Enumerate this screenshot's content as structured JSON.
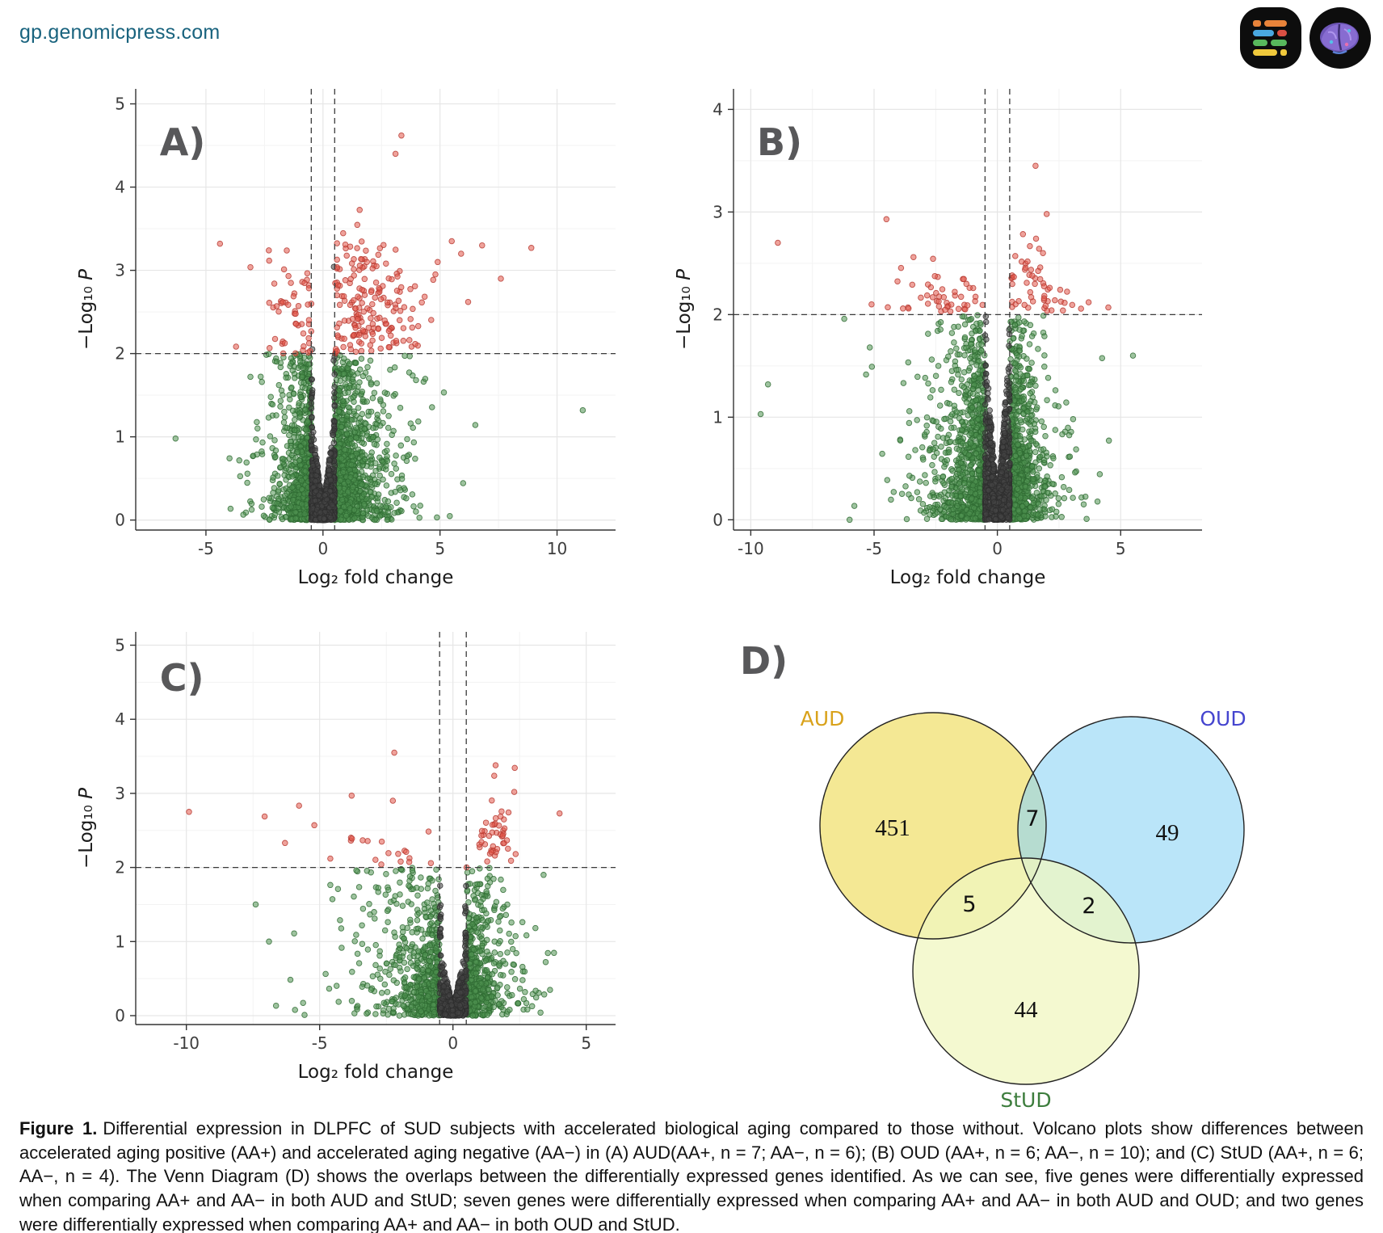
{
  "header": {
    "site": "gp.genomicpress.com",
    "logos": [
      {
        "name": "genomicpress-logo",
        "bg": "#0d0d0d"
      },
      {
        "name": "brain-logo",
        "bg": "#0d0d0d"
      }
    ]
  },
  "figure": {
    "label": "Figure 1.",
    "caption": "Differential expression in DLPFC of SUD subjects with accelerated biological aging compared to those without. Volcano plots show differences between accelerated aging positive (AA+) and accelerated aging negative (AA−) in (A) AUD(AA+, n = 7; AA−, n = 6); (B) OUD (AA+, n = 6; AA−, n = 10); and (C) StUD (AA+, n = 6; AA−, n = 4). The Venn Diagram (D) shows the overlaps between the differentially expressed genes identified. As we can see, five genes were differentially expressed when comparing AA+ and AA− in both AUD and StUD; seven genes were differentially expressed when comparing AA+ and AA− in both AUD and OUD; and two genes were differentially expressed when comparing AA+ and AA− in both OUD and StUD."
  },
  "chart_data": [
    {
      "type": "scatter",
      "panel": "A)",
      "subtype": "volcano",
      "xlabel": "Log₂ fold change",
      "ylabel": "−Log₁₀ P",
      "xlim": [
        -8.0,
        12.5
      ],
      "ylim": [
        -0.12,
        5.18
      ],
      "xticks": [
        -5,
        0,
        5,
        10
      ],
      "yticks": [
        0,
        1,
        2,
        3,
        4,
        5
      ],
      "hline": 2,
      "vlines": [
        -0.5,
        0.5
      ],
      "point_colors": {
        "ns": "#464646",
        "fc": "#4e9150",
        "sig": "#e25549"
      },
      "sim": {
        "seed": 11,
        "n": 2200,
        "pRight": 0.56,
        "scaleL": 0.8,
        "scaleR": 1.15,
        "xmaxL": 4.6,
        "xmaxR": 7.6,
        "yBase": 0.5,
        "ySlope": 0.22,
        "redKeep": 0.3,
        "centerN": 750,
        "cK0": 0.12,
        "cK": 2.3,
        "redClusters": [
          {
            "n": 120,
            "cx": 2.3,
            "cy": 2.5,
            "sx": 1.0,
            "sy": 0.33
          },
          {
            "n": 40,
            "cx": 1.3,
            "cy": 3.0,
            "sx": 0.7,
            "sy": 0.3
          },
          {
            "n": 28,
            "cx": -1.7,
            "cy": 2.5,
            "sx": 0.55,
            "sy": 0.3
          }
        ]
      },
      "outliers": [
        [
          11.1,
          1.32,
          "fc"
        ],
        [
          8.9,
          3.27,
          "sig"
        ],
        [
          3.35,
          4.62,
          "sig"
        ],
        [
          3.1,
          4.4,
          "sig"
        ],
        [
          6.8,
          3.3,
          "sig"
        ],
        [
          5.5,
          3.35,
          "sig"
        ],
        [
          4.9,
          3.1,
          "sig"
        ],
        [
          -4.4,
          3.32,
          "sig"
        ],
        [
          -6.3,
          0.98,
          "fc"
        ],
        [
          7.6,
          2.9,
          "sig"
        ],
        [
          6.2,
          2.62,
          "sig"
        ],
        [
          5.9,
          3.2,
          "sig"
        ]
      ]
    },
    {
      "type": "scatter",
      "panel": "B)",
      "subtype": "volcano",
      "xlabel": "Log₂ fold change",
      "ylabel": "−Log₁₀ P",
      "xlim": [
        -10.7,
        8.3
      ],
      "ylim": [
        -0.1,
        4.2
      ],
      "xticks": [
        -10,
        -5,
        0,
        5
      ],
      "yticks": [
        0,
        1,
        2,
        3,
        4
      ],
      "hline": 2,
      "vlines": [
        -0.5,
        0.5
      ],
      "point_colors": {
        "ns": "#464646",
        "fc": "#4e9150",
        "sig": "#e25549"
      },
      "sim": {
        "seed": 22,
        "n": 2200,
        "pRight": 0.47,
        "scaleL": 1.05,
        "scaleR": 0.8,
        "xmaxL": 7.0,
        "xmaxR": 4.8,
        "yBase": 0.42,
        "ySlope": 0.18,
        "redKeep": 0.12,
        "centerN": 800,
        "cK0": 0.12,
        "cK": 3.3,
        "redClusters": [
          {
            "n": 45,
            "cx": -2.1,
            "cy": 2.18,
            "sx": 0.9,
            "sy": 0.12
          },
          {
            "n": 38,
            "cx": 1.15,
            "cy": 2.3,
            "sx": 0.45,
            "sy": 0.22
          },
          {
            "n": 12,
            "cx": 2.8,
            "cy": 2.12,
            "sx": 0.6,
            "sy": 0.1
          }
        ]
      },
      "outliers": [
        [
          -8.9,
          2.7,
          "sig"
        ],
        [
          1.55,
          3.45,
          "sig"
        ],
        [
          -4.5,
          2.93,
          "sig"
        ],
        [
          2.0,
          2.98,
          "sig"
        ],
        [
          1.85,
          2.6,
          "sig"
        ],
        [
          -3.4,
          2.56,
          "sig"
        ],
        [
          -9.6,
          1.03,
          "fc"
        ],
        [
          -9.3,
          1.32,
          "fc"
        ],
        [
          5.5,
          1.6,
          "fc"
        ],
        [
          4.5,
          2.07,
          "sig"
        ],
        [
          3.7,
          2.12,
          "sig"
        ],
        [
          -5.1,
          2.1,
          "sig"
        ]
      ]
    },
    {
      "type": "scatter",
      "panel": "C)",
      "subtype": "volcano",
      "xlabel": "Log₂ fold change",
      "ylabel": "−Log₁₀ P",
      "xlim": [
        -11.9,
        6.1
      ],
      "ylim": [
        -0.12,
        5.18
      ],
      "xticks": [
        -10,
        -5,
        0,
        5
      ],
      "yticks": [
        0,
        1,
        2,
        3,
        4,
        5
      ],
      "hline": 2,
      "vlines": [
        -0.5,
        0.5
      ],
      "point_colors": {
        "ns": "#464646",
        "fc": "#4e9150",
        "sig": "#e25549"
      },
      "sim": {
        "seed": 33,
        "n": 1250,
        "pRight": 0.5,
        "scaleL": 1.35,
        "scaleR": 0.85,
        "xmaxL": 7.5,
        "xmaxR": 3.9,
        "yBase": 0.45,
        "ySlope": 0.2,
        "redKeep": 0.13,
        "centerN": 520,
        "cK0": 0.1,
        "cK": 1.7,
        "redClusters": [
          {
            "n": 42,
            "cx": 1.65,
            "cy": 2.45,
            "sx": 0.33,
            "sy": 0.3
          },
          {
            "n": 12,
            "cx": -2.7,
            "cy": 2.3,
            "sx": 0.7,
            "sy": 0.2
          }
        ]
      },
      "outliers": [
        [
          -9.9,
          2.75,
          "sig"
        ],
        [
          -6.3,
          2.33,
          "sig"
        ],
        [
          -5.2,
          2.57,
          "sig"
        ],
        [
          -3.8,
          2.97,
          "sig"
        ],
        [
          -2.2,
          3.55,
          "sig"
        ],
        [
          1.6,
          3.38,
          "sig"
        ],
        [
          4.0,
          2.73,
          "sig"
        ],
        [
          2.3,
          3.02,
          "sig"
        ],
        [
          -4.6,
          2.12,
          "sig"
        ],
        [
          3.4,
          1.9,
          "fc"
        ],
        [
          -7.4,
          1.5,
          "fc"
        ],
        [
          -6.9,
          1.0,
          "fc"
        ]
      ]
    },
    {
      "type": "venn",
      "panel": "D)",
      "sets": [
        {
          "name": "AUD",
          "unique": 451,
          "label_color": "#d9a21b",
          "fill": "#f3e588",
          "fill_opacity": 0.9
        },
        {
          "name": "OUD",
          "unique": 49,
          "label_color": "#4545cf",
          "fill": "#90d5f5",
          "fill_opacity": 0.62
        },
        {
          "name": "StUD",
          "unique": 44,
          "label_color": "#3d7d3d",
          "fill": "#f0f7c0",
          "fill_opacity": 0.75
        }
      ],
      "overlaps": [
        {
          "sets": "AUD∩OUD",
          "count": 7
        },
        {
          "sets": "AUD∩StUD",
          "count": 5
        },
        {
          "sets": "OUD∩StUD",
          "count": 2
        }
      ]
    }
  ]
}
